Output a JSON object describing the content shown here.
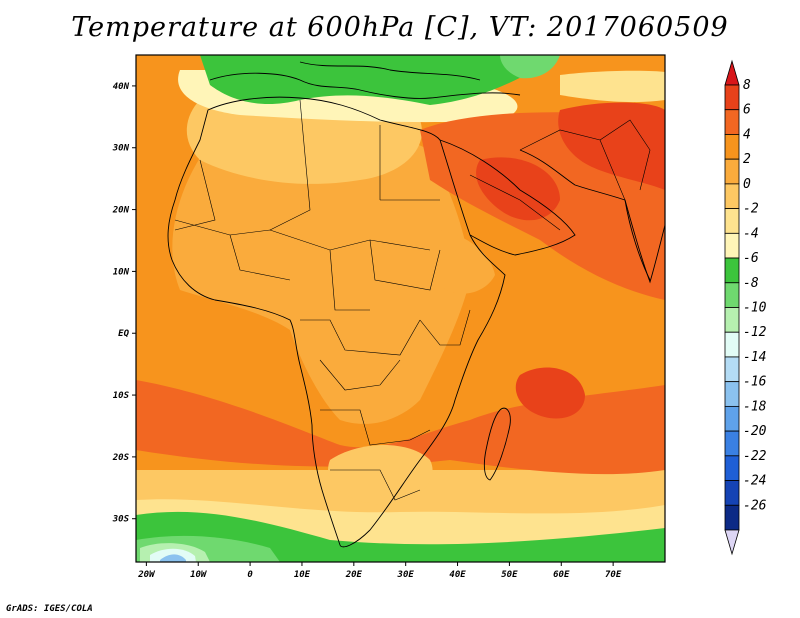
{
  "title": "Temperature at 600hPa [C], VT: 2017060509",
  "credit": "GrADS: IGES/COLA",
  "map": {
    "projection": "lat-lon",
    "lon_range": [
      -22,
      80
    ],
    "lat_range": [
      -37,
      45
    ],
    "lon_ticks": [
      {
        "value": -20,
        "label": "20W"
      },
      {
        "value": -10,
        "label": "10W"
      },
      {
        "value": 0,
        "label": "0"
      },
      {
        "value": 10,
        "label": "10E"
      },
      {
        "value": 20,
        "label": "20E"
      },
      {
        "value": 30,
        "label": "30E"
      },
      {
        "value": 40,
        "label": "40E"
      },
      {
        "value": 50,
        "label": "50E"
      },
      {
        "value": 60,
        "label": "60E"
      },
      {
        "value": 70,
        "label": "70E"
      }
    ],
    "lat_ticks": [
      {
        "value": 40,
        "label": "40N"
      },
      {
        "value": 30,
        "label": "30N"
      },
      {
        "value": 20,
        "label": "20N"
      },
      {
        "value": 10,
        "label": "10N"
      },
      {
        "value": 0,
        "label": "EQ"
      },
      {
        "value": -10,
        "label": "10S"
      },
      {
        "value": -20,
        "label": "20S"
      },
      {
        "value": -30,
        "label": "30S"
      }
    ]
  },
  "colorbar": {
    "levels": [
      {
        "label": "8",
        "color": "#e8421a"
      },
      {
        "label": "6",
        "color": "#f26722"
      },
      {
        "label": "4",
        "color": "#f7941d"
      },
      {
        "label": "2",
        "color": "#faab3c"
      },
      {
        "label": "0",
        "color": "#fdc863"
      },
      {
        "label": "-2",
        "color": "#fee38f"
      },
      {
        "label": "-4",
        "color": "#fff5b8"
      },
      {
        "label": "-6",
        "color": "#3cc43c"
      },
      {
        "label": "-8",
        "color": "#6fd96f"
      },
      {
        "label": "-10",
        "color": "#b6f0b0"
      },
      {
        "label": "-12",
        "color": "#e2fcf6"
      },
      {
        "label": "-14",
        "color": "#b4dcf5"
      },
      {
        "label": "-16",
        "color": "#8bc2ef"
      },
      {
        "label": "-18",
        "color": "#5fa2ea"
      },
      {
        "label": "-20",
        "color": "#3a80e3"
      },
      {
        "label": "-22",
        "color": "#1f5fd6"
      },
      {
        "label": "-24",
        "color": "#1543b4"
      },
      {
        "label": "-26",
        "color": "#0c2a86"
      }
    ],
    "top_color": "#d8161a",
    "bottom_color": "#ddd6f5"
  },
  "field_colors": {
    "hot": "#e8421a",
    "warm": "#f26722",
    "mid": "#f7941d",
    "mild": "#faab3c",
    "light": "#fdc863",
    "pale": "#fee38f",
    "cream": "#fff5b8",
    "green": "#3cc43c",
    "lightgreen": "#6fd96f",
    "mint": "#b6f0b0",
    "ice": "#e2fcf6",
    "blue": "#8bc2ef"
  }
}
